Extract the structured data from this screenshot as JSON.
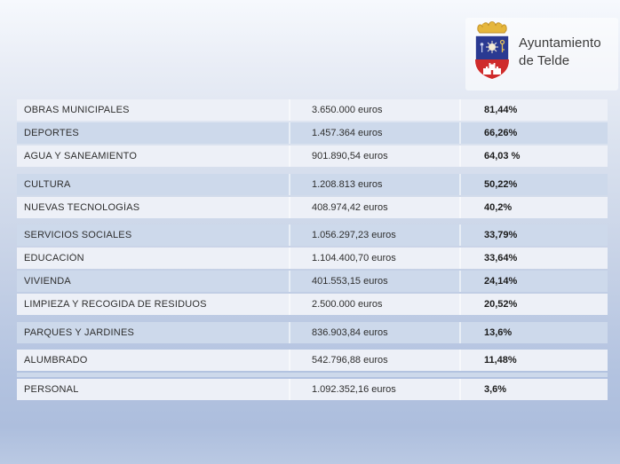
{
  "logo": {
    "line1": "Ayuntamiento",
    "line2": "de Telde",
    "crest_icon": "telde-coat-of-arms",
    "colors": {
      "crown_gold": "#d9a62e",
      "shield_blue": "#2a3a92",
      "shield_red": "#cf2b2b",
      "emblem_light": "#f5ecd5"
    }
  },
  "table": {
    "colors": {
      "band_light": "#edf0f7",
      "band_blue": "#cdd9eb",
      "text": "#2e2e2e"
    },
    "rows": [
      {
        "label": "OBRAS MUNICIPALES",
        "amount": "3.650.000 euros",
        "percent": "81,44%"
      },
      {
        "label": "DEPORTES",
        "amount": "1.457.364 euros",
        "percent": "66,26%"
      },
      {
        "label": "AGUA Y SANEAMIENTO",
        "amount": "901.890,54 euros",
        "percent": "64,03 %"
      },
      {
        "label": "CULTURA",
        "amount": "1.208.813 euros",
        "percent": "50,22%"
      },
      {
        "label": "NUEVAS TECNOLOGÍAS",
        "amount": "408.974,42 euros",
        "percent": "40,2%"
      },
      {
        "label": "SERVICIOS SOCIALES",
        "amount": "1.056.297,23 euros",
        "percent": "33,79%"
      },
      {
        "label": "EDUCACIÓN",
        "amount": "1.104.400,70 euros",
        "percent": "33,64%"
      },
      {
        "label": "VIVIENDA",
        "amount": "401.553,15 euros",
        "percent": "24,14%"
      },
      {
        "label": "LIMPIEZA Y RECOGIDA DE RESIDUOS",
        "amount": "2.500.000 euros",
        "percent": "20,52%"
      },
      {
        "label": "PARQUES Y JARDINES",
        "amount": "836.903,84 euros",
        "percent": "13,6%"
      },
      {
        "label": "ALUMBRADO",
        "amount": "542.796,88 euros",
        "percent": "11,48%"
      },
      {
        "label": "PERSONAL",
        "amount": "1.092.352,16 euros",
        "percent": "3,6%"
      }
    ]
  }
}
